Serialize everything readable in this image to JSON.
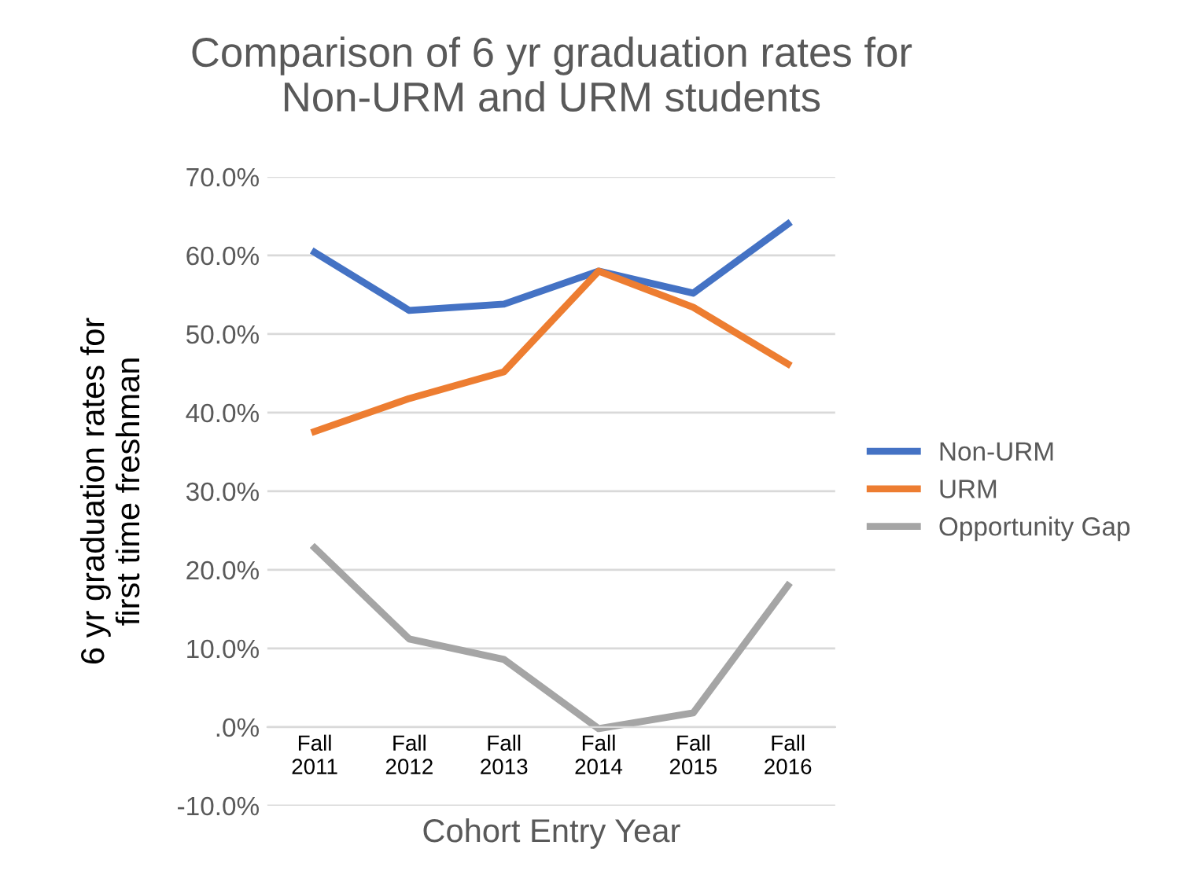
{
  "chart_data": {
    "type": "line",
    "title": "Comparison of 6 yr graduation rates for\nNon-URM and URM students",
    "xlabel": "Cohort Entry Year",
    "ylabel": "6 yr graduation rates for\nfirst time freshman",
    "categories": [
      "Fall\n2011",
      "Fall\n2012",
      "Fall\n2013",
      "Fall\n2014",
      "Fall\n2015",
      "Fall\n2016"
    ],
    "series": [
      {
        "name": "Non-URM",
        "color": "#4472c4",
        "values": [
          60.4,
          53.0,
          53.8,
          58.0,
          55.2,
          64.0
        ]
      },
      {
        "name": "URM",
        "color": "#ed7d31",
        "values": [
          37.6,
          41.8,
          45.2,
          58.0,
          53.4,
          46.2
        ]
      },
      {
        "name": "Opportunity Gap",
        "color": "#a5a5a5",
        "values": [
          22.8,
          11.2,
          8.6,
          -0.2,
          1.8,
          18.0
        ]
      }
    ],
    "ylim": [
      -10,
      70
    ],
    "yticks": [
      {
        "value": -10,
        "label": "-10.0%"
      },
      {
        "value": 0,
        "label": ".0%"
      },
      {
        "value": 10,
        "label": "10.0%"
      },
      {
        "value": 20,
        "label": "20.0%"
      },
      {
        "value": 30,
        "label": "30.0%"
      },
      {
        "value": 40,
        "label": "40.0%"
      },
      {
        "value": 50,
        "label": "50.0%"
      },
      {
        "value": 60,
        "label": "60.0%"
      },
      {
        "value": 70,
        "label": "70.0%"
      }
    ],
    "grid": "y",
    "legend": "right",
    "marker": "none",
    "line_style": "solid"
  }
}
